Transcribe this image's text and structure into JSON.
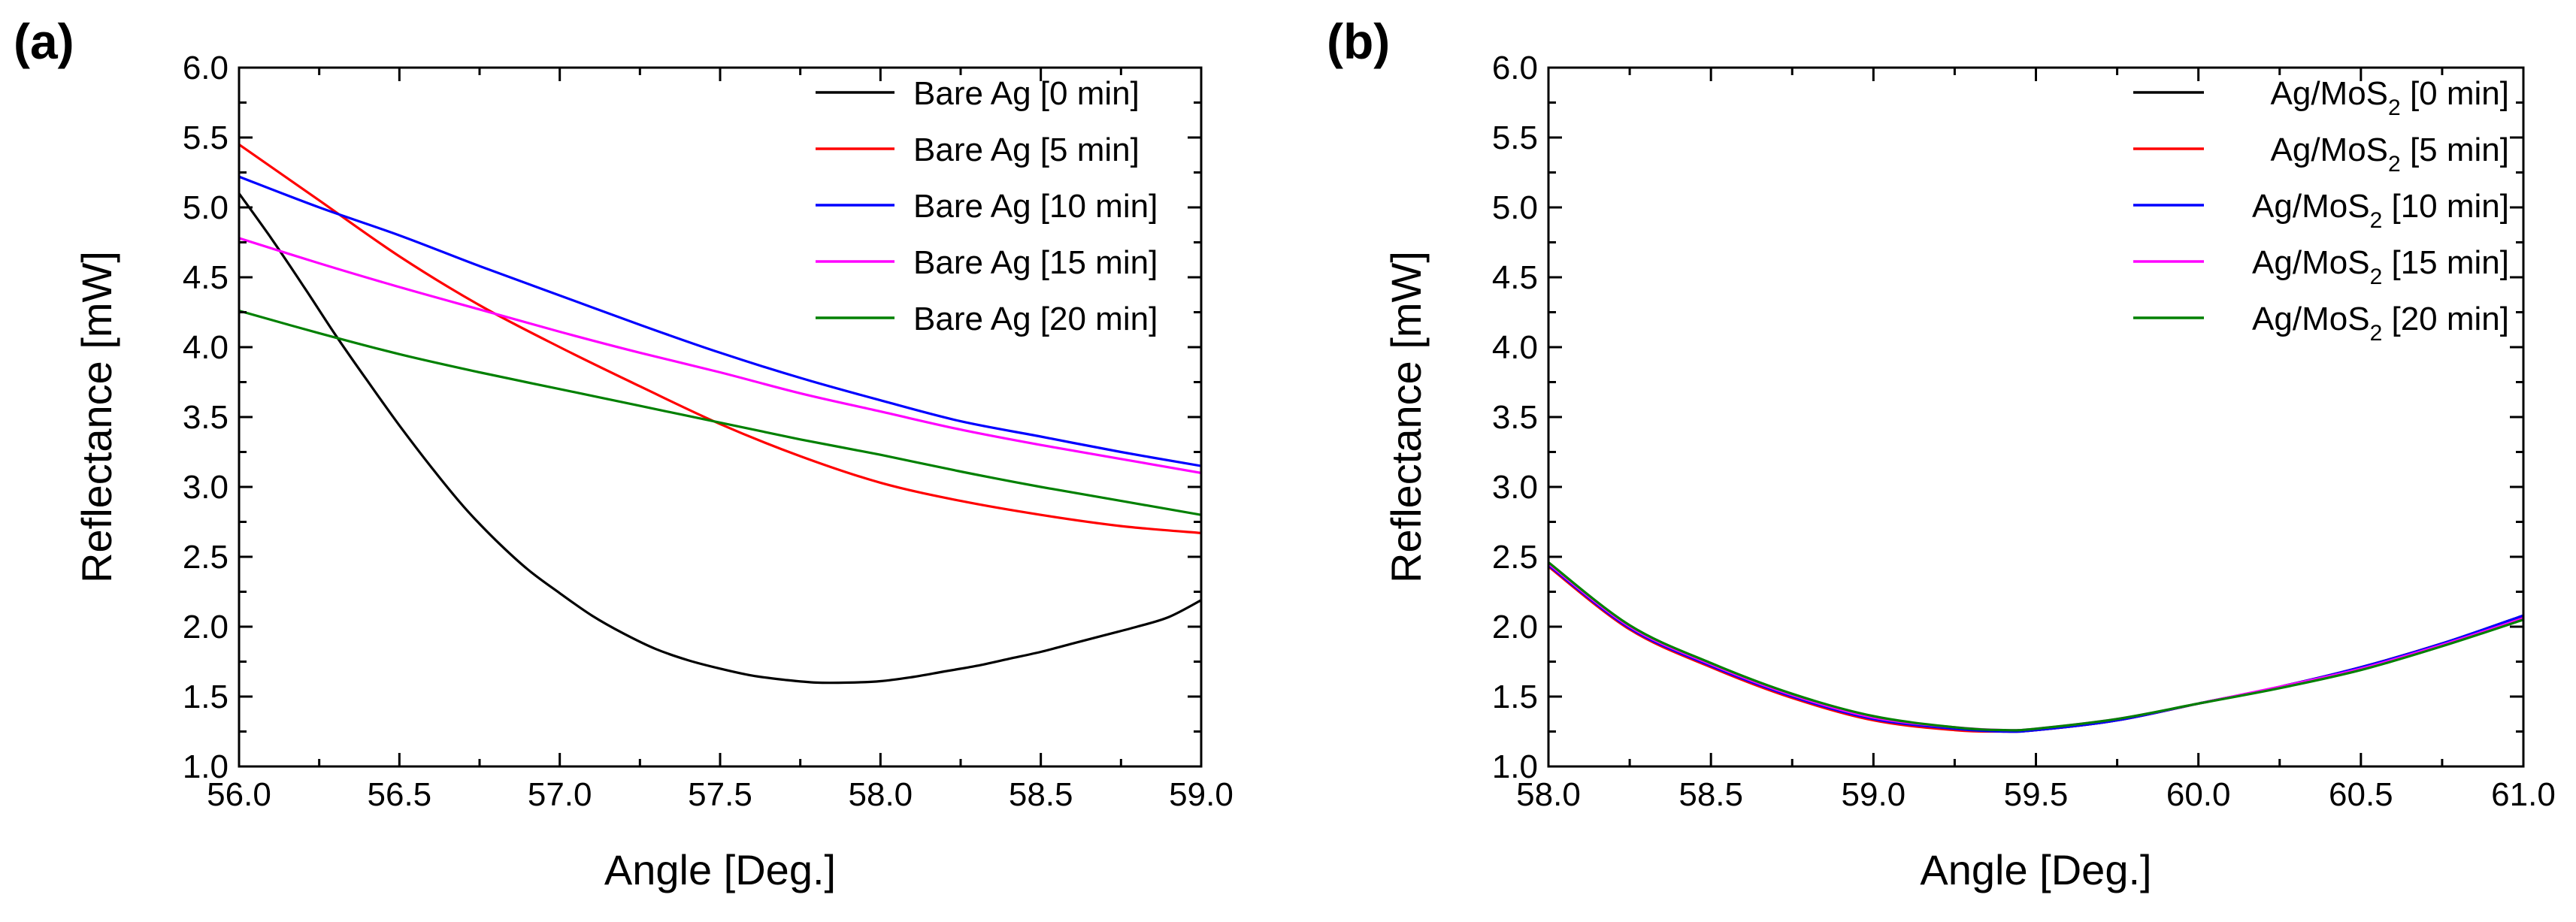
{
  "chart_data": [
    {
      "type": "line",
      "panel_label": "(a)",
      "xlabel": "Angle [Deg.]",
      "ylabel": "Reflectance [mW]",
      "xlim": [
        56.0,
        59.0
      ],
      "ylim": [
        1.0,
        6.0
      ],
      "x_ticks": [
        "56.0",
        "56.5",
        "57.0",
        "57.5",
        "58.0",
        "58.5",
        "59.0"
      ],
      "y_ticks": [
        "1.0",
        "1.5",
        "2.0",
        "2.5",
        "3.0",
        "3.5",
        "4.0",
        "4.5",
        "5.0",
        "5.5",
        "6.0"
      ],
      "legend_position": "top-right",
      "series": [
        {
          "name": "Bare Ag [0 min]",
          "label_main": "Bare Ag [0 min]",
          "label_sub": "",
          "label_tail": "",
          "color": "#000000",
          "x": [
            56.0,
            56.1,
            56.2,
            56.3,
            56.4,
            56.5,
            56.6,
            56.7,
            56.8,
            56.9,
            57.0,
            57.1,
            57.2,
            57.3,
            57.4,
            57.5,
            57.6,
            57.7,
            57.8,
            57.9,
            58.0,
            58.1,
            58.2,
            58.3,
            58.4,
            58.5,
            58.6,
            58.7,
            58.8,
            58.9,
            59.0
          ],
          "y": [
            5.1,
            4.78,
            4.44,
            4.09,
            3.76,
            3.44,
            3.14,
            2.86,
            2.62,
            2.41,
            2.24,
            2.08,
            1.95,
            1.84,
            1.76,
            1.7,
            1.65,
            1.62,
            1.6,
            1.6,
            1.61,
            1.64,
            1.68,
            1.72,
            1.77,
            1.82,
            1.88,
            1.94,
            2.0,
            2.07,
            2.19
          ]
        },
        {
          "name": "Bare Ag [5 min]",
          "label_main": "Bare Ag [5 min]",
          "label_sub": "",
          "label_tail": "",
          "color": "#ff0000",
          "x": [
            56.0,
            56.25,
            56.5,
            56.75,
            57.0,
            57.25,
            57.5,
            57.75,
            58.0,
            58.25,
            58.5,
            58.75,
            59.0
          ],
          "y": [
            5.45,
            5.05,
            4.65,
            4.3,
            4.0,
            3.72,
            3.45,
            3.22,
            3.03,
            2.9,
            2.8,
            2.72,
            2.67
          ]
        },
        {
          "name": "Bare Ag [10 min]",
          "label_main": "Bare Ag [10 min]",
          "label_sub": "",
          "label_tail": "",
          "color": "#0000ff",
          "x": [
            56.0,
            56.25,
            56.5,
            56.75,
            57.0,
            57.25,
            57.5,
            57.75,
            58.0,
            58.25,
            58.5,
            58.75,
            59.0
          ],
          "y": [
            5.22,
            5.0,
            4.8,
            4.58,
            4.37,
            4.16,
            3.96,
            3.78,
            3.62,
            3.47,
            3.36,
            3.25,
            3.15
          ]
        },
        {
          "name": "Bare Ag [15 min]",
          "label_main": "Bare Ag [15 min]",
          "label_sub": "",
          "label_tail": "",
          "color": "#ff00ff",
          "x": [
            56.0,
            56.25,
            56.5,
            56.75,
            57.0,
            57.25,
            57.5,
            57.75,
            58.0,
            58.25,
            58.5,
            58.75,
            59.0
          ],
          "y": [
            4.78,
            4.6,
            4.43,
            4.27,
            4.11,
            3.96,
            3.82,
            3.67,
            3.54,
            3.41,
            3.3,
            3.2,
            3.1
          ]
        },
        {
          "name": "Bare Ag [20 min]",
          "label_main": "Bare Ag [20 min]",
          "label_sub": "",
          "label_tail": "",
          "color": "#008000",
          "x": [
            56.0,
            56.25,
            56.5,
            56.75,
            57.0,
            57.25,
            57.5,
            57.75,
            58.0,
            58.25,
            58.5,
            58.75,
            59.0
          ],
          "y": [
            4.26,
            4.1,
            3.95,
            3.82,
            3.7,
            3.58,
            3.46,
            3.34,
            3.23,
            3.11,
            3.0,
            2.9,
            2.8
          ]
        }
      ]
    },
    {
      "type": "line",
      "panel_label": "(b)",
      "xlabel": "Angle [Deg.]",
      "ylabel": "Reflectance [mW]",
      "xlim": [
        58.0,
        61.0
      ],
      "ylim": [
        1.0,
        6.0
      ],
      "x_ticks": [
        "58.0",
        "58.5",
        "59.0",
        "59.5",
        "60.0",
        "60.5",
        "61.0"
      ],
      "y_ticks": [
        "1.0",
        "1.5",
        "2.0",
        "2.5",
        "3.0",
        "3.5",
        "4.0",
        "4.5",
        "5.0",
        "5.5",
        "6.0"
      ],
      "legend_position": "top-right",
      "series": [
        {
          "name": "Ag/MoS2 [0 min]",
          "label_main": "Ag/MoS",
          "label_sub": "2",
          "label_tail": " [0 min]",
          "color": "#000000",
          "x": [
            58.0,
            58.25,
            58.5,
            58.75,
            59.0,
            59.25,
            59.4,
            59.5,
            59.75,
            60.0,
            60.25,
            60.5,
            60.75,
            61.0
          ],
          "y": [
            2.45,
            2.0,
            1.72,
            1.5,
            1.34,
            1.27,
            1.25,
            1.26,
            1.33,
            1.45,
            1.57,
            1.71,
            1.88,
            2.08
          ]
        },
        {
          "name": "Ag/MoS2 [5 min]",
          "label_main": "Ag/MoS",
          "label_sub": "2",
          "label_tail": " [5 min]",
          "color": "#ff0000",
          "x": [
            58.0,
            58.25,
            58.5,
            58.75,
            59.0,
            59.25,
            59.4,
            59.5,
            59.75,
            60.0,
            60.25,
            60.5,
            60.75,
            61.0
          ],
          "y": [
            2.43,
            1.98,
            1.71,
            1.49,
            1.33,
            1.26,
            1.25,
            1.26,
            1.33,
            1.45,
            1.57,
            1.71,
            1.88,
            2.07
          ]
        },
        {
          "name": "Ag/MoS2 [10 min]",
          "label_main": "Ag/MoS",
          "label_sub": "2",
          "label_tail": " [10 min]",
          "color": "#0000ff",
          "x": [
            58.0,
            58.25,
            58.5,
            58.75,
            59.0,
            59.25,
            59.4,
            59.5,
            59.75,
            60.0,
            60.25,
            60.5,
            60.75,
            61.0
          ],
          "y": [
            2.44,
            1.99,
            1.72,
            1.5,
            1.34,
            1.27,
            1.25,
            1.26,
            1.33,
            1.45,
            1.57,
            1.71,
            1.88,
            2.08
          ]
        },
        {
          "name": "Ag/MoS2 [15 min]",
          "label_main": "Ag/MoS",
          "label_sub": "2",
          "label_tail": " [15 min]",
          "color": "#ff00ff",
          "x": [
            58.0,
            58.25,
            58.5,
            58.75,
            59.0,
            59.25,
            59.4,
            59.5,
            59.75,
            60.0,
            60.25,
            60.5,
            60.75,
            61.0
          ],
          "y": [
            2.45,
            2.0,
            1.73,
            1.51,
            1.35,
            1.28,
            1.26,
            1.27,
            1.34,
            1.45,
            1.57,
            1.7,
            1.87,
            2.06
          ]
        },
        {
          "name": "Ag/MoS2 [20 min]",
          "label_main": "Ag/MoS",
          "label_sub": "2",
          "label_tail": " [20 min]",
          "color": "#008000",
          "x": [
            58.0,
            58.25,
            58.5,
            58.75,
            59.0,
            59.25,
            59.4,
            59.5,
            59.75,
            60.0,
            60.25,
            60.5,
            60.75,
            61.0
          ],
          "y": [
            2.46,
            2.01,
            1.74,
            1.52,
            1.36,
            1.28,
            1.26,
            1.27,
            1.34,
            1.45,
            1.56,
            1.69,
            1.86,
            2.05
          ]
        }
      ]
    }
  ]
}
